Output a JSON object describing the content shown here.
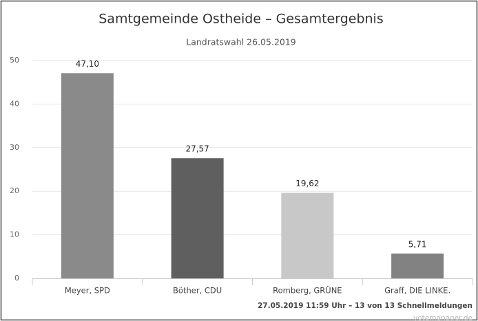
{
  "chart_data": {
    "type": "bar",
    "title": "Samtgemeinde Ostheide – Gesamtergebnis",
    "subtitle": "Landratswahl 26.05.2019",
    "categories": [
      "Meyer, SPD",
      "Böther, CDU",
      "Romberg, GRÜNE",
      "Graff, DIE LINKE."
    ],
    "values": [
      47.1,
      27.57,
      19.62,
      5.71
    ],
    "value_labels": [
      "47,10",
      "27,57",
      "19,62",
      "5,71"
    ],
    "colors": [
      "#8a8a8a",
      "#5f5f5f",
      "#c8c8c8",
      "#828282"
    ],
    "ylim": [
      0,
      50
    ],
    "yticks": [
      0,
      10,
      20,
      30,
      40,
      50
    ],
    "grid": true,
    "footnote": "27.05.2019 11:59 Uhr – 13 von 13 Schnellmeldungen",
    "credit": "votemanager.de"
  }
}
